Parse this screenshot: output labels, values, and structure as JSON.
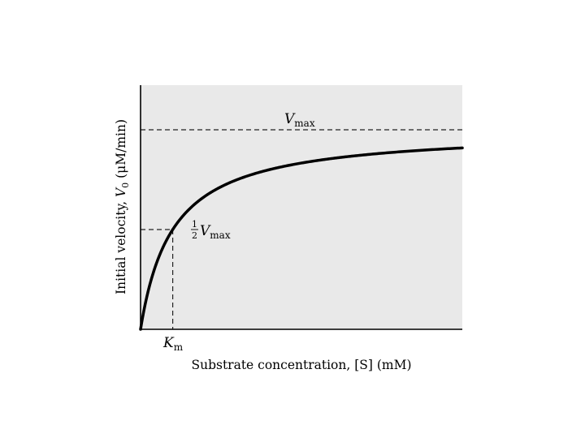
{
  "chart_data": {
    "type": "line",
    "title": "",
    "xlabel": "Substrate concentration, [S] (mM)",
    "ylabel": "Initial velocity, V0 (μM/min)",
    "xlim": [
      0,
      100
    ],
    "ylim": [
      0,
      100
    ],
    "grid": false,
    "axis_ticks": false,
    "background": "#e9e9e9",
    "curve": {
      "model": "Michaelis-Menten",
      "vmax": 100,
      "km": 10,
      "x": [
        0,
        2,
        5,
        10,
        20,
        30,
        40,
        50,
        60,
        70,
        80,
        90,
        100
      ],
      "y": [
        0,
        16.7,
        33.3,
        50,
        66.7,
        75,
        80,
        83.3,
        85.7,
        87.5,
        88.9,
        90,
        90.9
      ]
    },
    "annotations": {
      "vmax_label": {
        "main": "V",
        "sub": "max"
      },
      "half_vmax_label": {
        "frac_num": "1",
        "frac_den": "2",
        "main": "V",
        "sub": "max"
      },
      "km_label": {
        "main": "K",
        "sub": "m"
      },
      "ylabel_parts": {
        "pre": "Initial velocity, ",
        "v": "V",
        "sub": "0",
        "post": " (μM/min)"
      }
    }
  }
}
